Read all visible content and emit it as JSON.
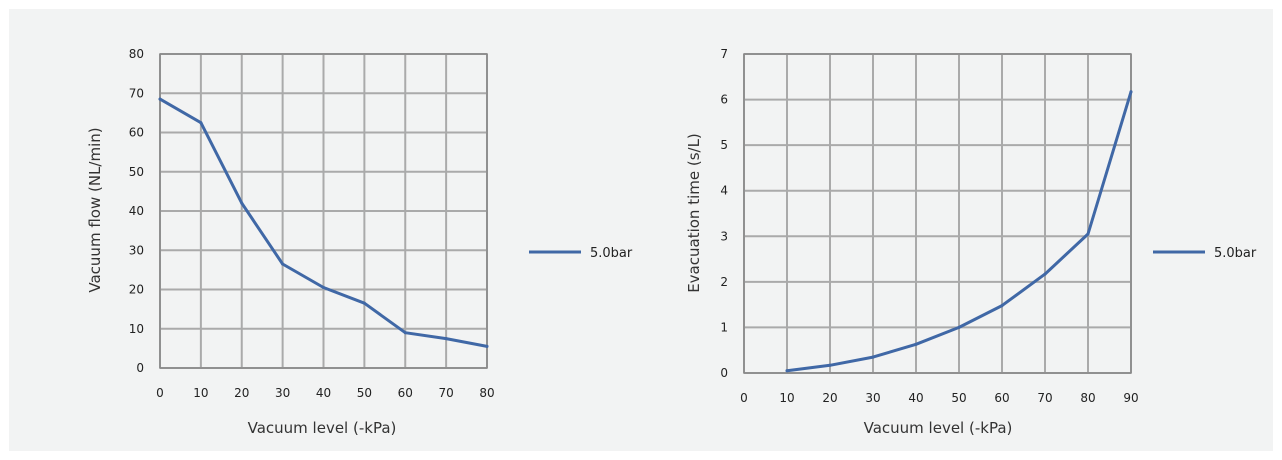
{
  "colors": {
    "series": "#4068a6",
    "grid": "#aaaaaa",
    "border": "#888888",
    "background": "#f2f3f3"
  },
  "chart_data": [
    {
      "type": "line",
      "xlabel": "Vacuum level (-kPa)",
      "ylabel": "Vacuum flow (NL/min)",
      "xlim": [
        0,
        80
      ],
      "ylim": [
        0,
        80
      ],
      "x_ticks": [
        "0",
        "10",
        "20",
        "30",
        "40",
        "50",
        "60",
        "70",
        "80"
      ],
      "y_ticks": [
        "0",
        "10",
        "20",
        "30",
        "40",
        "50",
        "60",
        "70",
        "80"
      ],
      "grid": true,
      "legend_position": "right",
      "series": [
        {
          "name": "5.0bar",
          "x": [
            0,
            10,
            20,
            30,
            40,
            50,
            60,
            70,
            80
          ],
          "y": [
            68.5,
            62.5,
            42,
            26.5,
            20.5,
            16.5,
            9,
            7.5,
            5.5
          ]
        }
      ]
    },
    {
      "type": "line",
      "xlabel": "Vacuum level (-kPa)",
      "ylabel": "Evacuation time (s/L)",
      "xlim": [
        0,
        90
      ],
      "ylim": [
        0,
        7
      ],
      "x_ticks": [
        "0",
        "10",
        "20",
        "30",
        "40",
        "50",
        "60",
        "70",
        "80",
        "90"
      ],
      "y_ticks": [
        "0",
        "1",
        "2",
        "3",
        "4",
        "5",
        "6",
        "7"
      ],
      "grid": true,
      "legend_position": "right",
      "series": [
        {
          "name": "5.0bar",
          "x": [
            10,
            20,
            30,
            40,
            50,
            60,
            70,
            80,
            90
          ],
          "y": [
            0.05,
            0.17,
            0.35,
            0.63,
            1.0,
            1.48,
            2.17,
            3.05,
            6.17
          ]
        }
      ]
    }
  ]
}
